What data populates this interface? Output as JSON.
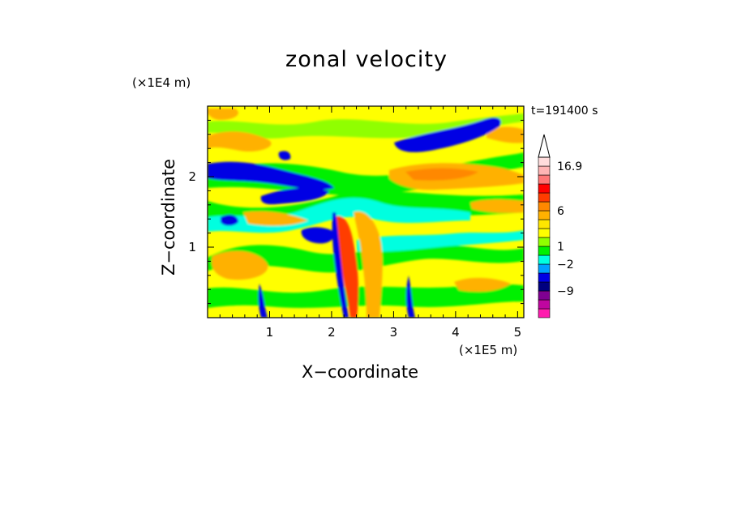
{
  "chart_data": {
    "type": "heatmap",
    "title": "zonal velocity",
    "xlabel": "X−coordinate",
    "ylabel": "Z−coordinate",
    "x_unit": "(×1E5 m)",
    "y_unit": "(×1E4 m)",
    "timestamp": "t=191400 s",
    "xlim": [
      0,
      5.1
    ],
    "ylim": [
      0,
      3.0
    ],
    "xticks": [
      1,
      2,
      3,
      4,
      5
    ],
    "yticks": [
      1,
      2
    ],
    "colorbar": {
      "tick_labels": [
        "16.9",
        "6",
        "1",
        "−2",
        "−9"
      ],
      "colors": [
        "#ff1cae",
        "#c0069f",
        "#7f0092",
        "#00007f",
        "#0000e4",
        "#00a1ff",
        "#00ffe0",
        "#00f000",
        "#90ff00",
        "#ffff00",
        "#ffe600",
        "#ffb100",
        "#ff8800",
        "#ff3c00",
        "#ff0000",
        "#ff7777",
        "#ffb4b4",
        "#ffdcdc"
      ]
    },
    "features": [
      {
        "label": "negative jet",
        "x": [
          0.0,
          1.9
        ],
        "z": [
          1.8,
          2.2
        ],
        "level": -9
      },
      {
        "label": "negative jet",
        "x": [
          3.0,
          4.6
        ],
        "z": [
          2.4,
          2.8
        ],
        "level": -9
      },
      {
        "label": "positive band",
        "x": [
          2.6,
          4.4
        ],
        "z": [
          1.9,
          2.3
        ],
        "level": 6
      },
      {
        "label": "negative patch",
        "x": [
          1.5,
          2.0
        ],
        "z": [
          1.0,
          1.3
        ],
        "level": -9
      },
      {
        "label": "positive patch",
        "x": [
          0.3,
          1.1
        ],
        "z": [
          0.6,
          1.0
        ],
        "level": 6
      }
    ]
  }
}
